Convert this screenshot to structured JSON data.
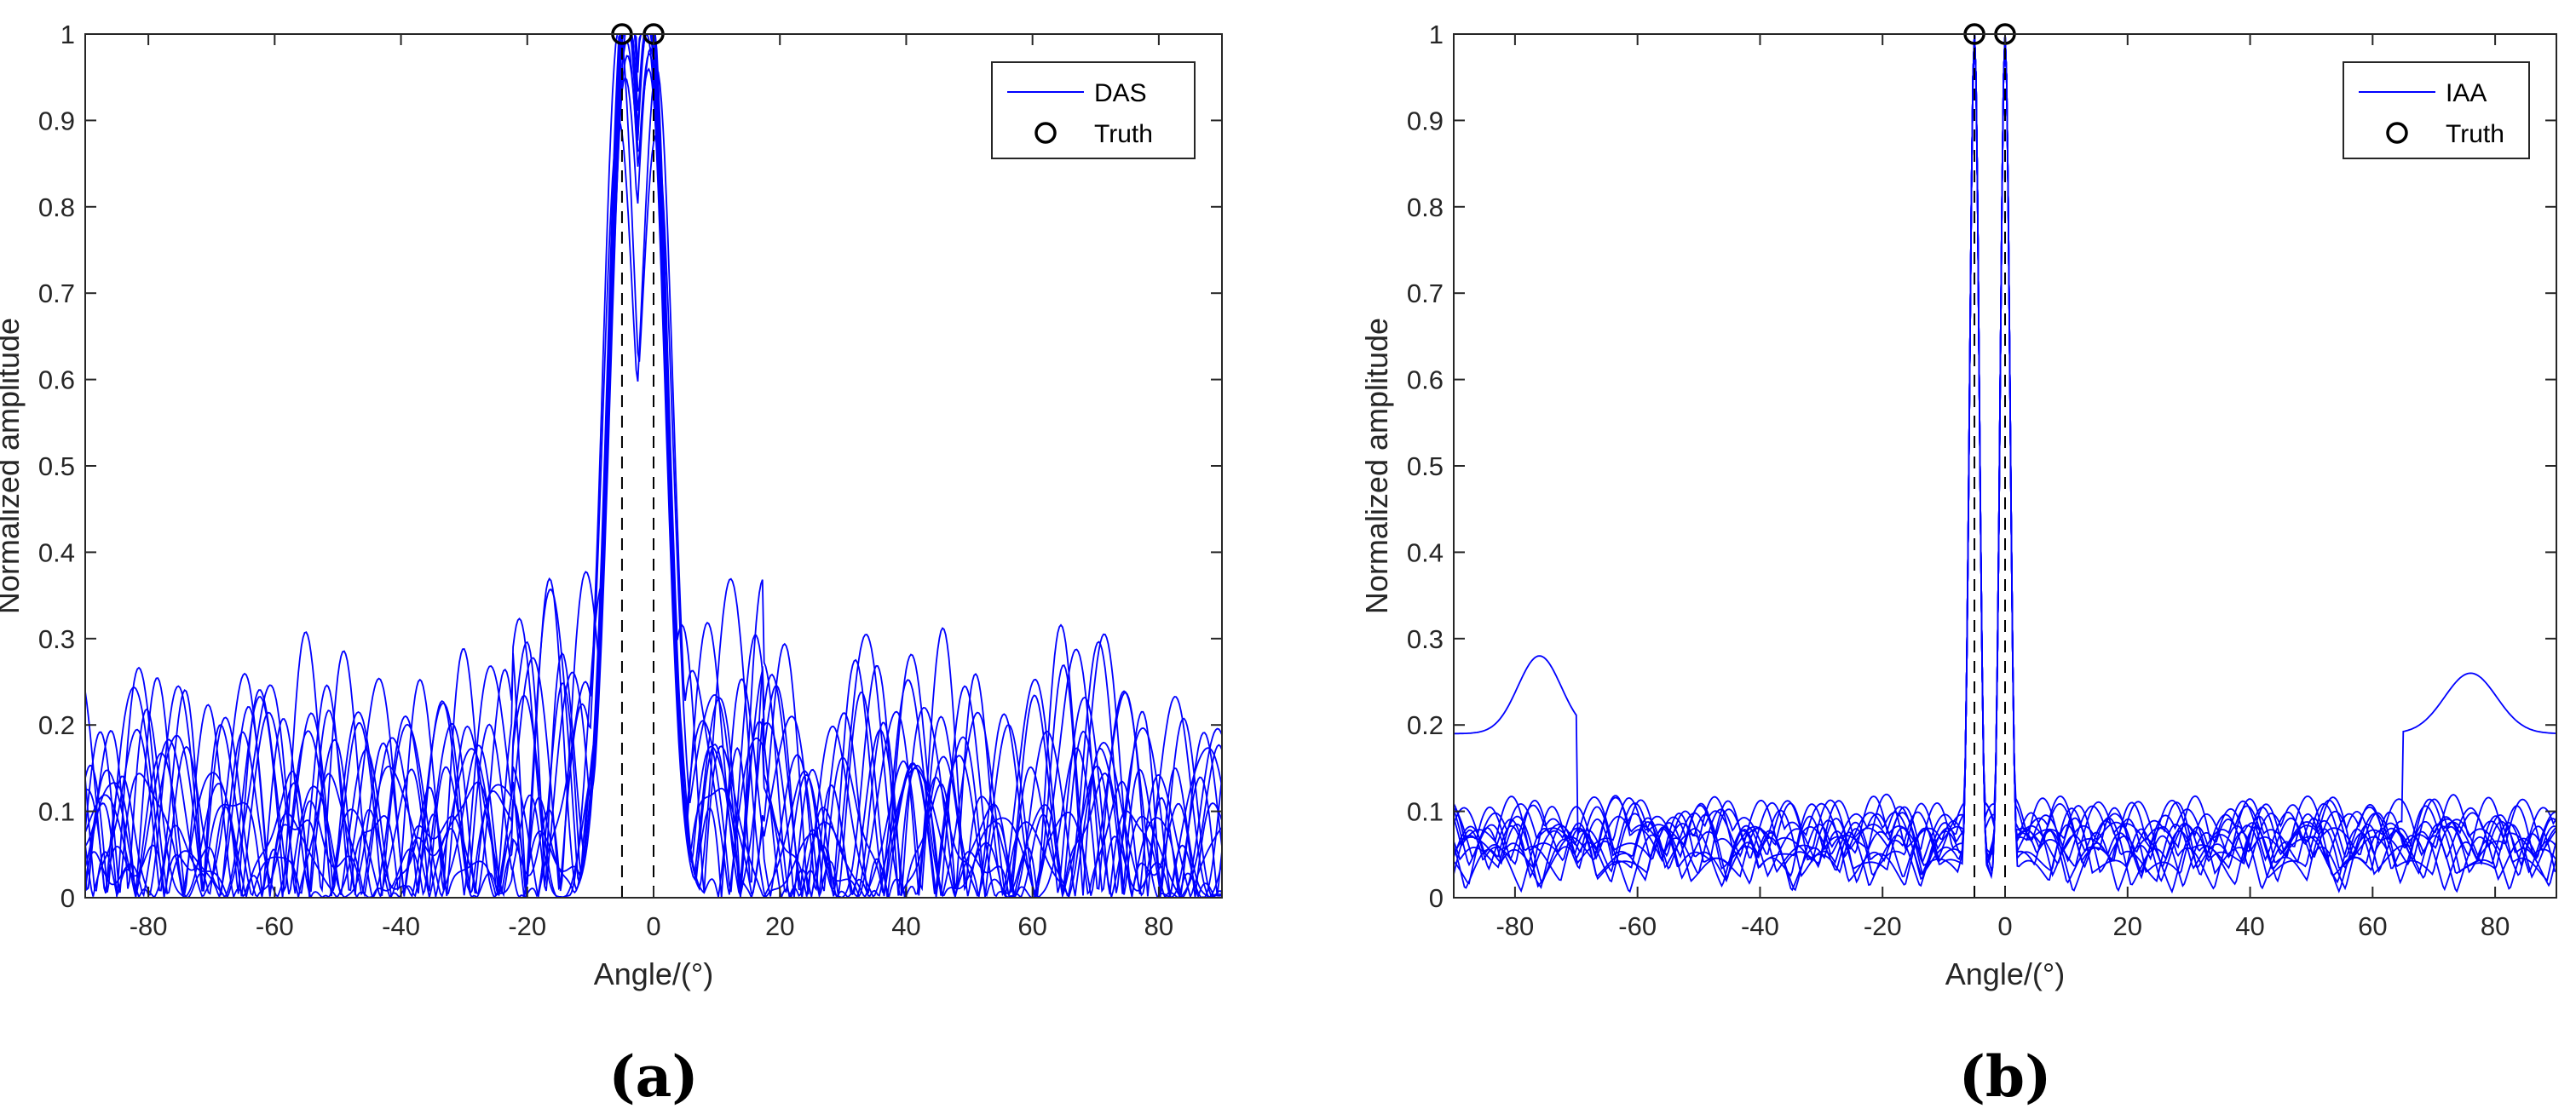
{
  "colors": {
    "series": "#0000ff",
    "truth": "#000000",
    "axis": "#262626"
  },
  "chart_data": [
    {
      "type": "line",
      "panel_label": "(a)",
      "title": "",
      "xlabel": "Angle/(°)",
      "ylabel": "Normalized amplitude",
      "xlim": [
        -90,
        90
      ],
      "ylim": [
        0,
        1
      ],
      "xticks": [
        -80,
        -60,
        -40,
        -20,
        0,
        20,
        40,
        60,
        80
      ],
      "yticks": [
        0,
        0.1,
        0.2,
        0.3,
        0.4,
        0.5,
        0.6,
        0.7,
        0.8,
        0.9,
        1
      ],
      "ytick_labels": [
        "0",
        "0.1",
        "0.2",
        "0.3",
        "0.4",
        "0.5",
        "0.6",
        "0.7",
        "0.8",
        "0.9",
        "1"
      ],
      "legend": [
        "DAS",
        "Truth"
      ],
      "legend_position": "top-right",
      "truth_angles": [
        -5,
        0
      ],
      "truth_value": 1,
      "num_trials": 12,
      "method": "DAS",
      "series_description": "12 Monte-Carlo trials of the DAS spectrum; broad mainlobe peaks near -5 and 0 degrees (0.86-1.0), sidelobes mostly 0.05-0.42"
    },
    {
      "type": "line",
      "panel_label": "(b)",
      "title": "",
      "xlabel": "Angle/(°)",
      "ylabel": "Normalized amplitude",
      "xlim": [
        -90,
        90
      ],
      "ylim": [
        0,
        1
      ],
      "xticks": [
        -80,
        -60,
        -40,
        -20,
        0,
        20,
        40,
        60,
        80
      ],
      "yticks": [
        0,
        0.1,
        0.2,
        0.3,
        0.4,
        0.5,
        0.6,
        0.7,
        0.8,
        0.9,
        1
      ],
      "ytick_labels": [
        "0",
        "0.1",
        "0.2",
        "0.3",
        "0.4",
        "0.5",
        "0.6",
        "0.7",
        "0.8",
        "0.9",
        "1"
      ],
      "legend": [
        "IAA",
        "Truth"
      ],
      "legend_position": "top-right",
      "truth_angles": [
        -5,
        0
      ],
      "truth_value": 1,
      "num_trials": 12,
      "method": "IAA",
      "series_description": "12 Monte-Carlo trials of the IAA spectrum; narrow peaks at -5 and 0 degrees reaching 1.0, sidelobes mostly below 0.23 with one trial near 0.28 at -76 and 0.26 at 76 degrees"
    }
  ]
}
